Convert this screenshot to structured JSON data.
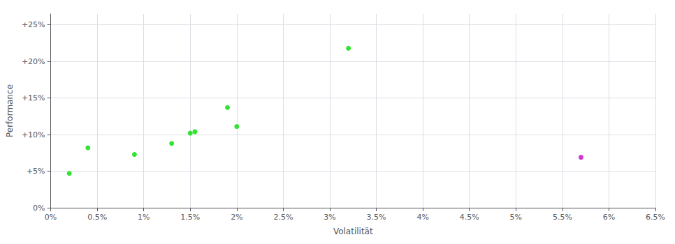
{
  "chart_data": {
    "type": "scatter",
    "xlabel": "Volatilität",
    "ylabel": "Performance",
    "xlim": [
      0,
      0.065
    ],
    "ylim": [
      0.0,
      0.265
    ],
    "xticks": [
      {
        "value": 0.0,
        "label": "0%"
      },
      {
        "value": 0.005,
        "label": "0.5%"
      },
      {
        "value": 0.01,
        "label": "1%"
      },
      {
        "value": 0.015,
        "label": "1.5%"
      },
      {
        "value": 0.02,
        "label": "2%"
      },
      {
        "value": 0.025,
        "label": "2.5%"
      },
      {
        "value": 0.03,
        "label": "3%"
      },
      {
        "value": 0.035,
        "label": "3.5%"
      },
      {
        "value": 0.04,
        "label": "4%"
      },
      {
        "value": 0.045,
        "label": "4.5%"
      },
      {
        "value": 0.05,
        "label": "5%"
      },
      {
        "value": 0.055,
        "label": "5.5%"
      },
      {
        "value": 0.06,
        "label": "6%"
      },
      {
        "value": 0.065,
        "label": "6.5%"
      }
    ],
    "yticks": [
      {
        "value": 0.0,
        "label": "0%"
      },
      {
        "value": 0.05,
        "label": "+5%"
      },
      {
        "value": 0.1,
        "label": "+10%"
      },
      {
        "value": 0.15,
        "label": "+15%"
      },
      {
        "value": 0.2,
        "label": "+20%"
      },
      {
        "value": 0.25,
        "label": "+25%"
      }
    ],
    "grid": true,
    "series": [
      {
        "color": "#00dd00",
        "x": [
          0.002,
          0.004,
          0.009,
          0.013,
          0.015,
          0.0155,
          0.019,
          0.02,
          0.032
        ],
        "values": [
          0.047,
          0.082,
          0.073,
          0.088,
          0.102,
          0.104,
          0.137,
          0.111,
          0.218
        ]
      },
      {
        "color": "#cc00cc",
        "x": [
          0.057
        ],
        "values": [
          0.069
        ]
      }
    ]
  }
}
